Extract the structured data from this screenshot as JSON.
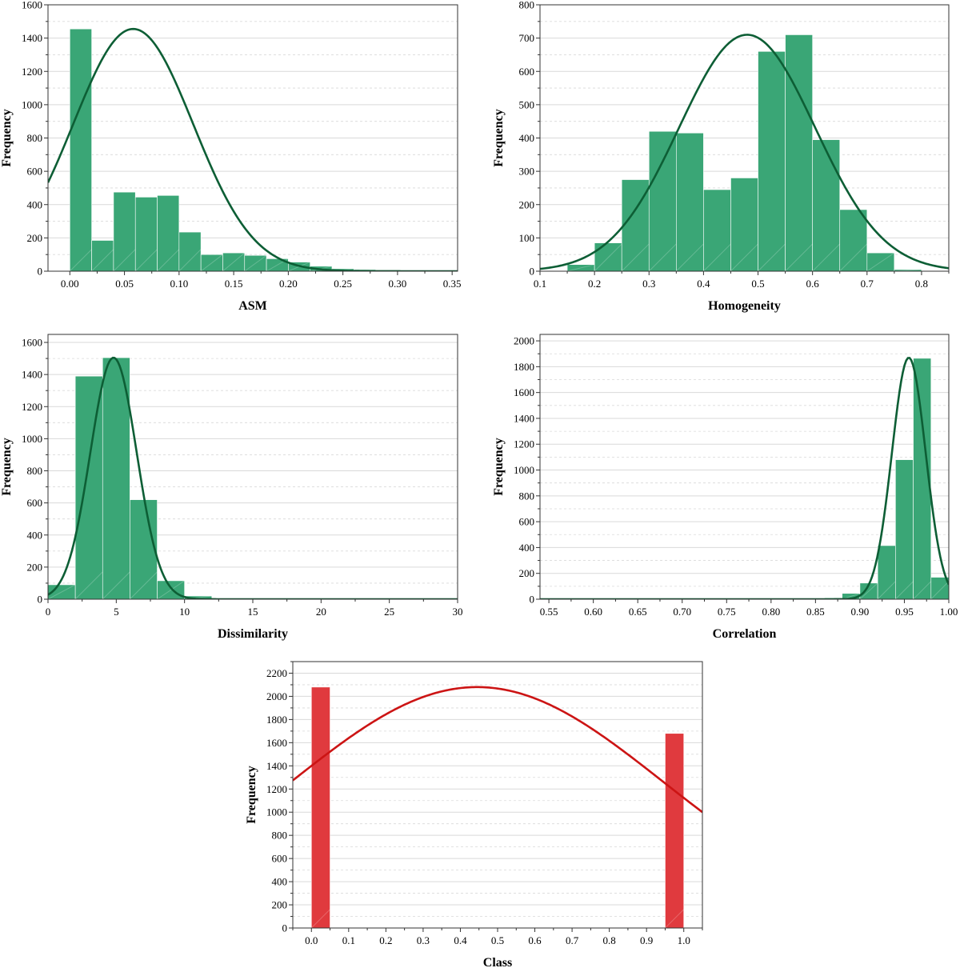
{
  "colors": {
    "green_fill": "#3aa676",
    "green_curve": "#0d5e35",
    "red_fill": "#e03a3e",
    "red_curve": "#cc1414",
    "grid": "#d9d9d9"
  },
  "chart_data": [
    {
      "type": "bar",
      "xlabel": "ASM",
      "ylabel": "Frequency",
      "xlim": [
        -0.02,
        0.355
      ],
      "ylim": [
        0,
        1600
      ],
      "xticks": [
        0.0,
        0.05,
        0.1,
        0.15,
        0.2,
        0.25,
        0.3,
        0.35
      ],
      "xtick_labels": [
        "0.00",
        "0.05",
        "0.10",
        "0.15",
        "0.20",
        "0.25",
        "0.30",
        "0.35"
      ],
      "yticks": [
        0,
        200,
        400,
        600,
        800,
        1000,
        1200,
        1400,
        1600
      ],
      "ytick_labels": [
        "0",
        "200",
        "400",
        "600",
        "800",
        "1000",
        "1200",
        "1400",
        "1600"
      ],
      "bin_edges": [
        0.0,
        0.02,
        0.04,
        0.06,
        0.08,
        0.1,
        0.12,
        0.14,
        0.16,
        0.18,
        0.2,
        0.22,
        0.24,
        0.26,
        0.28
      ],
      "counts": [
        1455,
        185,
        475,
        445,
        455,
        235,
        100,
        110,
        95,
        75,
        55,
        30,
        15,
        10
      ],
      "normal_fit": {
        "mean": 0.058,
        "sd": 0.055,
        "peak": 1455
      },
      "grid": true,
      "color": "green"
    },
    {
      "type": "bar",
      "xlabel": "Homogeneity",
      "ylabel": "Frequency",
      "xlim": [
        0.1,
        0.85
      ],
      "ylim": [
        0,
        800
      ],
      "xticks": [
        0.1,
        0.2,
        0.3,
        0.4,
        0.5,
        0.6,
        0.7,
        0.8
      ],
      "xtick_labels": [
        "0.1",
        "0.2",
        "0.3",
        "0.4",
        "0.5",
        "0.6",
        "0.7",
        "0.8"
      ],
      "yticks": [
        0,
        100,
        200,
        300,
        400,
        500,
        600,
        700,
        800
      ],
      "ytick_labels": [
        "0",
        "100",
        "200",
        "300",
        "400",
        "500",
        "600",
        "700",
        "800"
      ],
      "bin_edges": [
        0.15,
        0.2,
        0.25,
        0.3,
        0.35,
        0.4,
        0.45,
        0.5,
        0.55,
        0.6,
        0.65,
        0.7,
        0.75,
        0.8
      ],
      "counts": [
        20,
        85,
        275,
        420,
        415,
        245,
        280,
        660,
        710,
        395,
        185,
        55,
        5
      ],
      "normal_fit": {
        "mean": 0.48,
        "sd": 0.125,
        "peak": 710
      },
      "grid": true,
      "color": "green"
    },
    {
      "type": "bar",
      "xlabel": "Dissimilarity",
      "ylabel": "Frequency",
      "xlim": [
        0,
        30
      ],
      "ylim": [
        0,
        1650
      ],
      "xticks": [
        0,
        5,
        10,
        15,
        20,
        25,
        30
      ],
      "xtick_labels": [
        "0",
        "5",
        "10",
        "15",
        "20",
        "25",
        "30"
      ],
      "yticks": [
        0,
        200,
        400,
        600,
        800,
        1000,
        1200,
        1400,
        1600
      ],
      "ytick_labels": [
        "0",
        "200",
        "400",
        "600",
        "800",
        "1000",
        "1200",
        "1400",
        "1600"
      ],
      "bin_edges": [
        0,
        2,
        4,
        6,
        8,
        10,
        12,
        14
      ],
      "counts": [
        90,
        1390,
        1505,
        620,
        115,
        20,
        5
      ],
      "normal_fit": {
        "mean": 4.8,
        "sd": 1.7,
        "peak": 1505
      },
      "grid": true,
      "color": "green"
    },
    {
      "type": "bar",
      "xlabel": "Correlation",
      "ylabel": "Frequency",
      "xlim": [
        0.54,
        1.0
      ],
      "ylim": [
        0,
        2050
      ],
      "xticks": [
        0.55,
        0.6,
        0.65,
        0.7,
        0.75,
        0.8,
        0.85,
        0.9,
        0.95,
        1.0
      ],
      "xtick_labels": [
        "0.55",
        "0.60",
        "0.65",
        "0.70",
        "0.75",
        "0.80",
        "0.85",
        "0.90",
        "0.95",
        "1.00"
      ],
      "yticks": [
        0,
        200,
        400,
        600,
        800,
        1000,
        1200,
        1400,
        1600,
        1800,
        2000
      ],
      "ytick_labels": [
        "0",
        "200",
        "400",
        "600",
        "800",
        "1000",
        "1200",
        "1400",
        "1600",
        "1800",
        "2000"
      ],
      "bin_edges": [
        0.86,
        0.88,
        0.9,
        0.92,
        0.94,
        0.96,
        0.98,
        1.0
      ],
      "counts": [
        10,
        45,
        125,
        415,
        1080,
        1865,
        170
      ],
      "normal_fit": {
        "mean": 0.955,
        "sd": 0.019,
        "peak": 1870
      },
      "grid": true,
      "color": "green"
    },
    {
      "type": "bar",
      "xlabel": "Class",
      "ylabel": "Frequency",
      "xlim": [
        -0.05,
        1.05
      ],
      "ylim": [
        0,
        2300
      ],
      "xticks": [
        0.0,
        0.1,
        0.2,
        0.3,
        0.4,
        0.5,
        0.6,
        0.7,
        0.8,
        0.9,
        1.0
      ],
      "xtick_labels": [
        "0.0",
        "0.1",
        "0.2",
        "0.3",
        "0.4",
        "0.5",
        "0.6",
        "0.7",
        "0.8",
        "0.9",
        "1.0"
      ],
      "yticks": [
        0,
        200,
        400,
        600,
        800,
        1000,
        1200,
        1400,
        1600,
        1800,
        2000,
        2200
      ],
      "ytick_labels": [
        "0",
        "200",
        "400",
        "600",
        "800",
        "1000",
        "1200",
        "1400",
        "1600",
        "1800",
        "2000",
        "2200"
      ],
      "bin_edges": [
        0.0,
        0.05,
        0.95,
        1.0
      ],
      "counts": [
        2080,
        0,
        1680
      ],
      "normal_fit": {
        "mean": 0.445,
        "sd": 0.5,
        "peak": 2080
      },
      "grid": true,
      "color": "red"
    }
  ]
}
